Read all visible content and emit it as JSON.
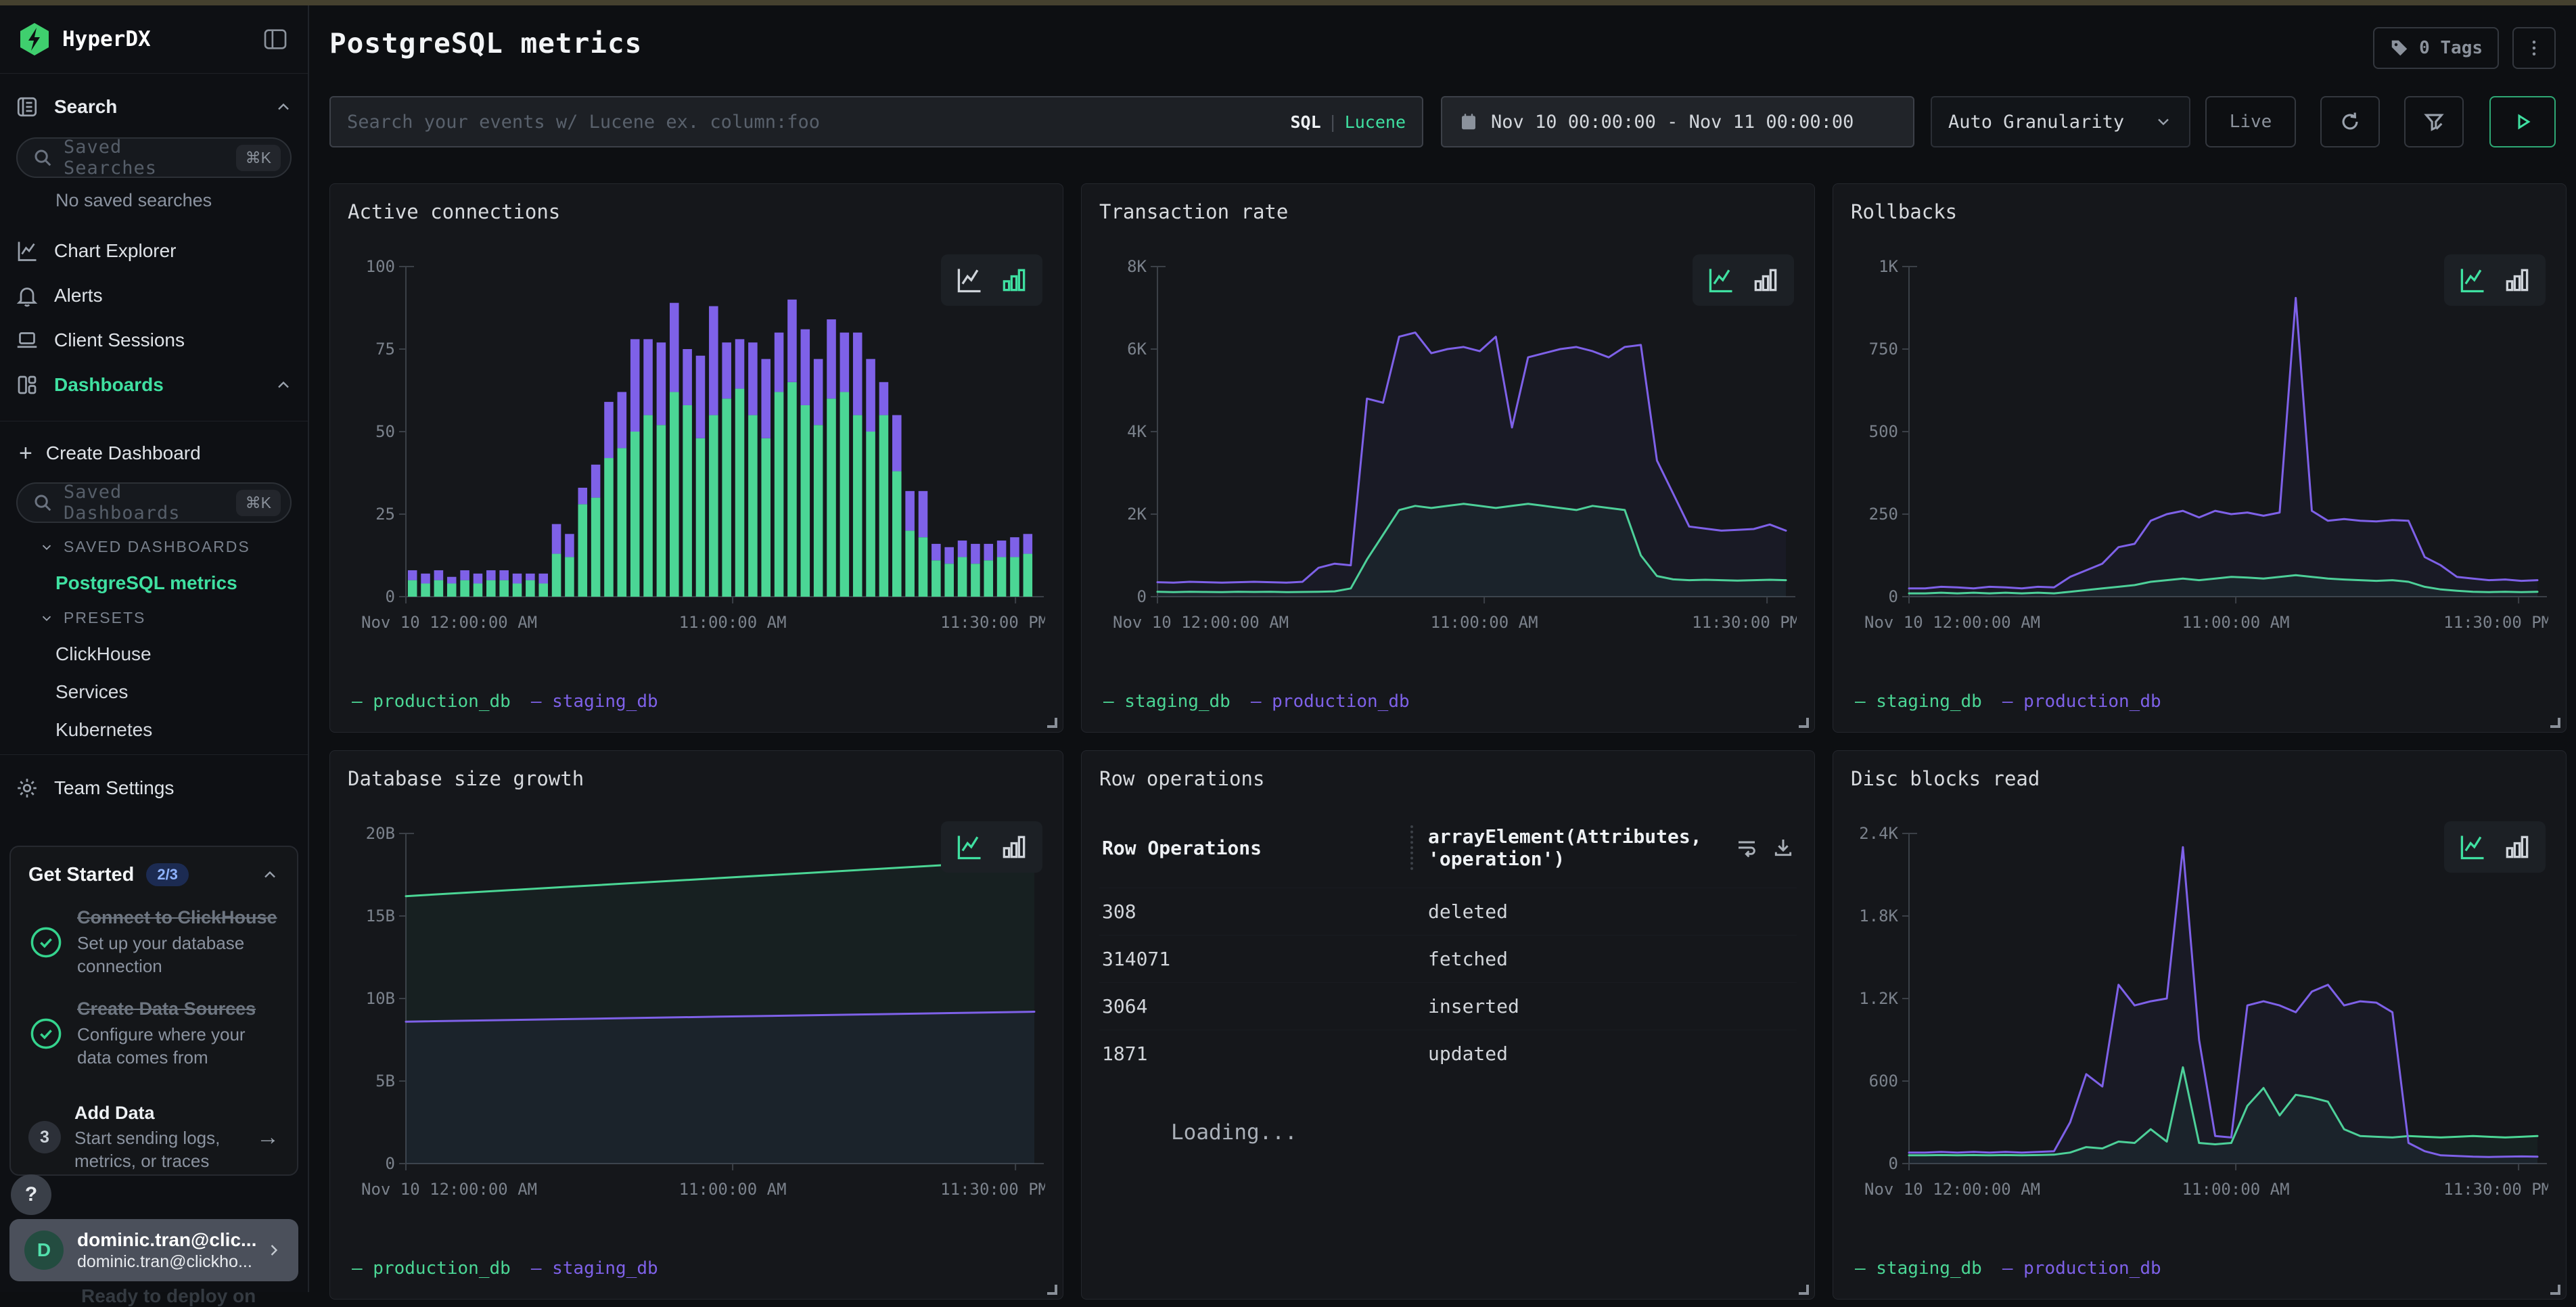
{
  "brand": {
    "name": "HyperDX",
    "accent": "#3fe0a1"
  },
  "sidebar": {
    "search_group_label": "Search",
    "saved_searches": {
      "placeholder": "Saved Searches",
      "shortcut": "⌘K",
      "empty": "No saved searches"
    },
    "items": [
      {
        "label": "Chart Explorer"
      },
      {
        "label": "Alerts"
      },
      {
        "label": "Client Sessions"
      },
      {
        "label": "Dashboards"
      }
    ],
    "create_dashboard": "Create Dashboard",
    "saved_dashboards": {
      "placeholder": "Saved Dashboards",
      "shortcut": "⌘K"
    },
    "sections": {
      "saved": "SAVED DASHBOARDS",
      "presets": "PRESETS"
    },
    "saved_items": [
      {
        "label": "PostgreSQL metrics"
      }
    ],
    "preset_items": [
      "ClickHouse",
      "Services",
      "Kubernetes"
    ],
    "team_settings": "Team Settings",
    "get_started": {
      "title": "Get Started",
      "badge": "2/3",
      "steps": [
        {
          "title": "Connect to ClickHouse",
          "desc": "Set up your database connection"
        },
        {
          "title": "Create Data Sources",
          "desc": "Configure where your data comes from"
        },
        {
          "title": "Add Data",
          "desc": "Start sending logs, metrics, or traces",
          "number": "3"
        }
      ]
    },
    "help_label": "?",
    "profile": {
      "initial": "D",
      "name": "dominic.tran@clic...",
      "email": "dominic.tran@clickho..."
    },
    "background_text": "Ready to deploy on"
  },
  "header": {
    "title": "PostgreSQL metrics",
    "tags_label": "0 Tags"
  },
  "toolbar": {
    "search_placeholder": "Search your events w/ Lucene ex. column:foo",
    "mode_sql": "SQL",
    "mode_divider": "|",
    "mode_lucene": "Lucene",
    "time_range": "Nov 10 00:00:00 - Nov 11 00:00:00",
    "granularity": "Auto Granularity",
    "live": "Live"
  },
  "colors": {
    "series_green": "#4bd695",
    "series_purple": "#7e61e8"
  },
  "chart_data": [
    {
      "type": "bar",
      "title": "Active connections",
      "active_toggle": "bar",
      "ylim": [
        0,
        100
      ],
      "legend_position": "bottom-left",
      "grid": false,
      "yticks": [
        {
          "v": 100,
          "l": "100"
        },
        {
          "v": 75,
          "l": "75"
        },
        {
          "v": 50,
          "l": "50"
        },
        {
          "v": 25,
          "l": "25"
        },
        {
          "v": 0,
          "l": "0"
        }
      ],
      "xticks": [
        {
          "f": 0,
          "l": "Nov 10 12:00:00 AM",
          "a": "start"
        },
        {
          "f": 0.52,
          "l": "11:00:00 AM",
          "a": "middle"
        },
        {
          "f": 0.97,
          "l": "11:30:00 PM",
          "a": "end"
        }
      ],
      "series": [
        {
          "name": "production_db",
          "color": "#4bd695",
          "values": [
            5,
            4,
            5,
            4,
            5,
            4,
            5,
            5,
            4,
            5,
            4,
            13,
            12,
            28,
            30,
            42,
            45,
            50,
            55,
            52,
            62,
            58,
            48,
            55,
            60,
            63,
            55,
            48,
            62,
            65,
            58,
            52,
            60,
            62,
            55,
            50,
            55,
            38,
            20,
            18,
            11,
            10,
            12,
            10,
            11,
            12,
            12,
            13
          ]
        },
        {
          "name": "staging_db",
          "color": "#7e61e8",
          "values": [
            3,
            3,
            3,
            2,
            3,
            3,
            3,
            3,
            3,
            2,
            3,
            9,
            7,
            5,
            10,
            17,
            17,
            28,
            23,
            25,
            27,
            17,
            25,
            33,
            17,
            15,
            22,
            24,
            18,
            25,
            23,
            20,
            24,
            18,
            25,
            22,
            10,
            17,
            12,
            14,
            5,
            5,
            5,
            6,
            5,
            5,
            6,
            6
          ]
        }
      ]
    },
    {
      "type": "line",
      "title": "Transaction rate",
      "active_toggle": "line",
      "ylim": [
        0,
        8000
      ],
      "legend_position": "bottom-left",
      "grid": false,
      "yticks": [
        {
          "v": 8000,
          "l": "8K"
        },
        {
          "v": 6000,
          "l": "6K"
        },
        {
          "v": 4000,
          "l": "4K"
        },
        {
          "v": 2000,
          "l": "2K"
        },
        {
          "v": 0,
          "l": "0"
        }
      ],
      "xticks": [
        {
          "f": 0,
          "l": "Nov 10 12:00:00 AM",
          "a": "start"
        },
        {
          "f": 0.52,
          "l": "11:00:00 AM",
          "a": "middle"
        },
        {
          "f": 0.97,
          "l": "11:30:00 PM",
          "a": "end"
        }
      ],
      "series": [
        {
          "name": "staging_db",
          "color": "#4bd695",
          "values": [
            120,
            110,
            120,
            115,
            110,
            120,
            115,
            120,
            110,
            115,
            120,
            130,
            200,
            900,
            1500,
            2100,
            2200,
            2150,
            2200,
            2250,
            2200,
            2150,
            2200,
            2250,
            2200,
            2150,
            2100,
            2200,
            2150,
            2100,
            1000,
            500,
            420,
            400,
            410,
            400,
            390,
            400,
            410,
            400
          ]
        },
        {
          "name": "production_db",
          "color": "#7e61e8",
          "values": [
            350,
            340,
            360,
            350,
            340,
            350,
            360,
            350,
            340,
            360,
            700,
            800,
            760,
            4800,
            4700,
            6300,
            6400,
            5900,
            6000,
            6050,
            5950,
            6300,
            4100,
            5800,
            5900,
            6000,
            6050,
            5950,
            5800,
            6050,
            6100,
            3300,
            2500,
            1700,
            1650,
            1600,
            1620,
            1640,
            1750,
            1600
          ]
        }
      ]
    },
    {
      "type": "line",
      "title": "Rollbacks",
      "active_toggle": "line",
      "ylim": [
        0,
        1000
      ],
      "legend_position": "bottom-left",
      "grid": false,
      "yticks": [
        {
          "v": 1000,
          "l": "1K"
        },
        {
          "v": 750,
          "l": "750"
        },
        {
          "v": 500,
          "l": "500"
        },
        {
          "v": 250,
          "l": "250"
        },
        {
          "v": 0,
          "l": "0"
        }
      ],
      "xticks": [
        {
          "f": 0,
          "l": "Nov 10 12:00:00 AM",
          "a": "start"
        },
        {
          "f": 0.52,
          "l": "11:00:00 AM",
          "a": "middle"
        },
        {
          "f": 0.97,
          "l": "11:30:00 PM",
          "a": "end"
        }
      ],
      "series": [
        {
          "name": "staging_db",
          "color": "#4bd695",
          "values": [
            10,
            10,
            12,
            10,
            12,
            10,
            12,
            10,
            12,
            10,
            15,
            20,
            25,
            30,
            35,
            45,
            50,
            55,
            50,
            55,
            60,
            58,
            55,
            60,
            65,
            60,
            55,
            52,
            50,
            48,
            50,
            45,
            30,
            22,
            18,
            15,
            14,
            15,
            14,
            15
          ]
        },
        {
          "name": "production_db",
          "color": "#7e61e8",
          "values": [
            25,
            25,
            30,
            28,
            25,
            30,
            28,
            25,
            30,
            28,
            60,
            80,
            100,
            150,
            160,
            230,
            250,
            260,
            240,
            260,
            250,
            255,
            245,
            255,
            905,
            260,
            230,
            235,
            230,
            228,
            232,
            230,
            120,
            95,
            60,
            55,
            50,
            52,
            48,
            50
          ]
        }
      ]
    },
    {
      "type": "line",
      "title": "Database size growth",
      "active_toggle": "line",
      "ylim": [
        0,
        20000000000
      ],
      "legend_position": "bottom-left",
      "grid": false,
      "yticks": [
        {
          "v": 20000000000,
          "l": "20B"
        },
        {
          "v": 15000000000,
          "l": "15B"
        },
        {
          "v": 10000000000,
          "l": "10B"
        },
        {
          "v": 5000000000,
          "l": "5B"
        },
        {
          "v": 0,
          "l": "0"
        }
      ],
      "xticks": [
        {
          "f": 0,
          "l": "Nov 10 12:00:00 AM",
          "a": "start"
        },
        {
          "f": 0.52,
          "l": "11:00:00 AM",
          "a": "middle"
        },
        {
          "f": 0.97,
          "l": "11:30:00 PM",
          "a": "end"
        }
      ],
      "series": [
        {
          "name": "production_db",
          "color": "#4bd695",
          "values": [
            16200000000,
            16750000000,
            17300000000,
            17850000000,
            18400000000
          ]
        },
        {
          "name": "staging_db",
          "color": "#7e61e8",
          "values": [
            8600000000,
            8750000000,
            8900000000,
            9050000000,
            9200000000
          ]
        }
      ]
    },
    {
      "type": "table",
      "title": "Row operations",
      "columns": [
        "Row Operations",
        "arrayElement(Attributes, 'operation')"
      ],
      "rows": [
        [
          "308",
          "deleted"
        ],
        [
          "314071",
          "fetched"
        ],
        [
          "3064",
          "inserted"
        ],
        [
          "1871",
          "updated"
        ]
      ],
      "loading": "Loading..."
    },
    {
      "type": "line",
      "title": "Disc blocks read",
      "active_toggle": "line",
      "ylim": [
        0,
        2400
      ],
      "legend_position": "bottom-left",
      "grid": false,
      "yticks": [
        {
          "v": 2400,
          "l": "2.4K"
        },
        {
          "v": 1800,
          "l": "1.8K"
        },
        {
          "v": 1200,
          "l": "1.2K"
        },
        {
          "v": 600,
          "l": "600"
        },
        {
          "v": 0,
          "l": "0"
        }
      ],
      "xticks": [
        {
          "f": 0,
          "l": "Nov 10 12:00:00 AM",
          "a": "start"
        },
        {
          "f": 0.52,
          "l": "11:00:00 AM",
          "a": "middle"
        },
        {
          "f": 0.97,
          "l": "11:30:00 PM",
          "a": "end"
        }
      ],
      "series": [
        {
          "name": "staging_db",
          "color": "#4bd695",
          "values": [
            60,
            60,
            62,
            60,
            62,
            60,
            62,
            60,
            62,
            65,
            80,
            120,
            110,
            160,
            150,
            250,
            160,
            700,
            150,
            140,
            150,
            420,
            550,
            350,
            500,
            480,
            450,
            250,
            200,
            195,
            190,
            200,
            195,
            190,
            195,
            200,
            195,
            190,
            195,
            200
          ]
        },
        {
          "name": "production_db",
          "color": "#7e61e8",
          "values": [
            80,
            80,
            85,
            80,
            85,
            80,
            85,
            80,
            85,
            90,
            300,
            650,
            560,
            1300,
            1150,
            1180,
            1200,
            2300,
            900,
            200,
            190,
            1150,
            1180,
            1150,
            1100,
            1250,
            1300,
            1150,
            1180,
            1170,
            1100,
            150,
            90,
            60,
            55,
            50,
            48,
            50,
            52,
            50
          ]
        }
      ]
    }
  ]
}
